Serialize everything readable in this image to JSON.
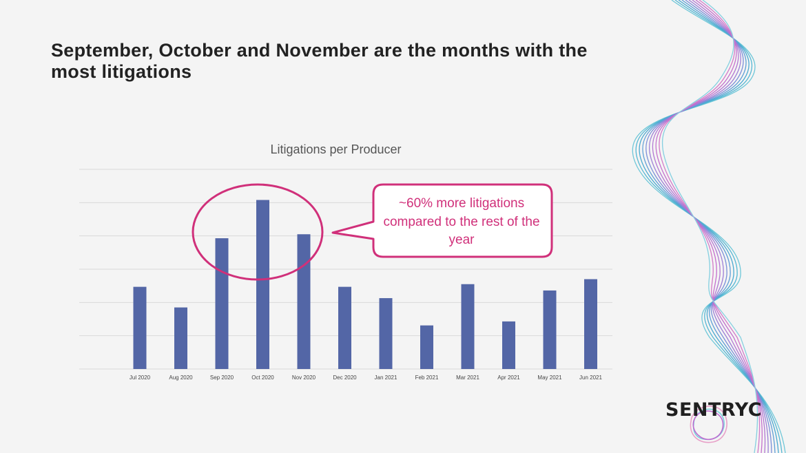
{
  "slide": {
    "title": "September, October and November are the months with the most litigations",
    "brand": "SENTRYC"
  },
  "callout": {
    "text": "~60% more litigations compared to the rest of the year",
    "color": "#d0307a"
  },
  "chart_data": {
    "type": "bar",
    "title": "Litigations per Producer",
    "xlabel": "",
    "ylabel": "",
    "categories": [
      "Jul 2020",
      "Aug 2020",
      "Sep 2020",
      "Oct 2020",
      "Nov 2020",
      "Dec 2020",
      "Jan 2021",
      "Feb 2021",
      "Mar 2021",
      "Apr 2021",
      "May 2021",
      "Jun 2021"
    ],
    "values": [
      2.47,
      1.85,
      3.93,
      5.08,
      4.05,
      2.47,
      2.13,
      1.31,
      2.55,
      1.43,
      2.36,
      2.7
    ],
    "ylim": [
      0,
      6
    ],
    "grid": true,
    "legend": "none",
    "bar_color": "#5366a6",
    "grid_color": "#d9d9d9"
  }
}
